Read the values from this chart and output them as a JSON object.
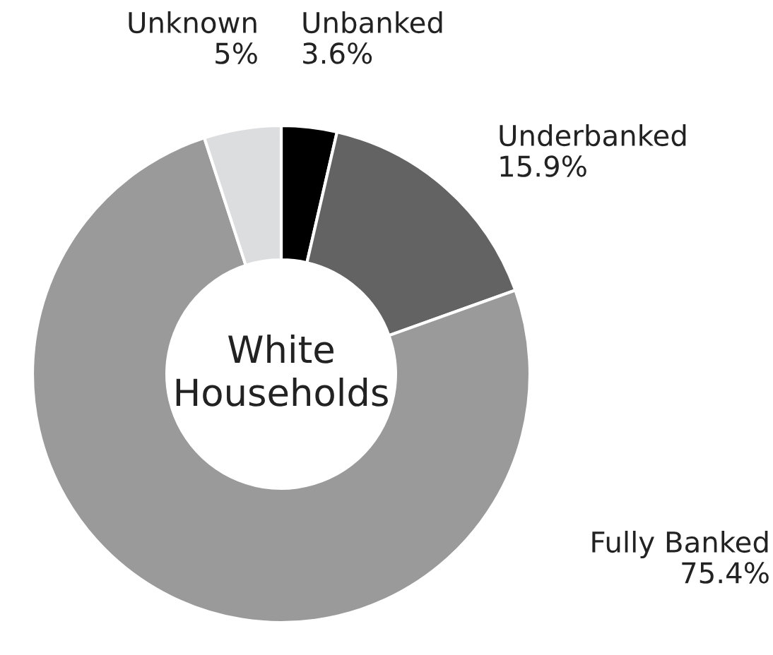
{
  "chart_data": {
    "type": "donut",
    "title": "White Households",
    "categories": [
      "Unbanked",
      "Underbanked",
      "Fully Banked",
      "Unknown"
    ],
    "values": [
      3.6,
      15.9,
      75.4,
      5
    ],
    "value_labels": [
      "3.6%",
      "15.9%",
      "75.4%",
      "5%"
    ],
    "colors": [
      "#000000",
      "#636363",
      "#9a9a9a",
      "#dcdddf"
    ],
    "legend": false
  }
}
